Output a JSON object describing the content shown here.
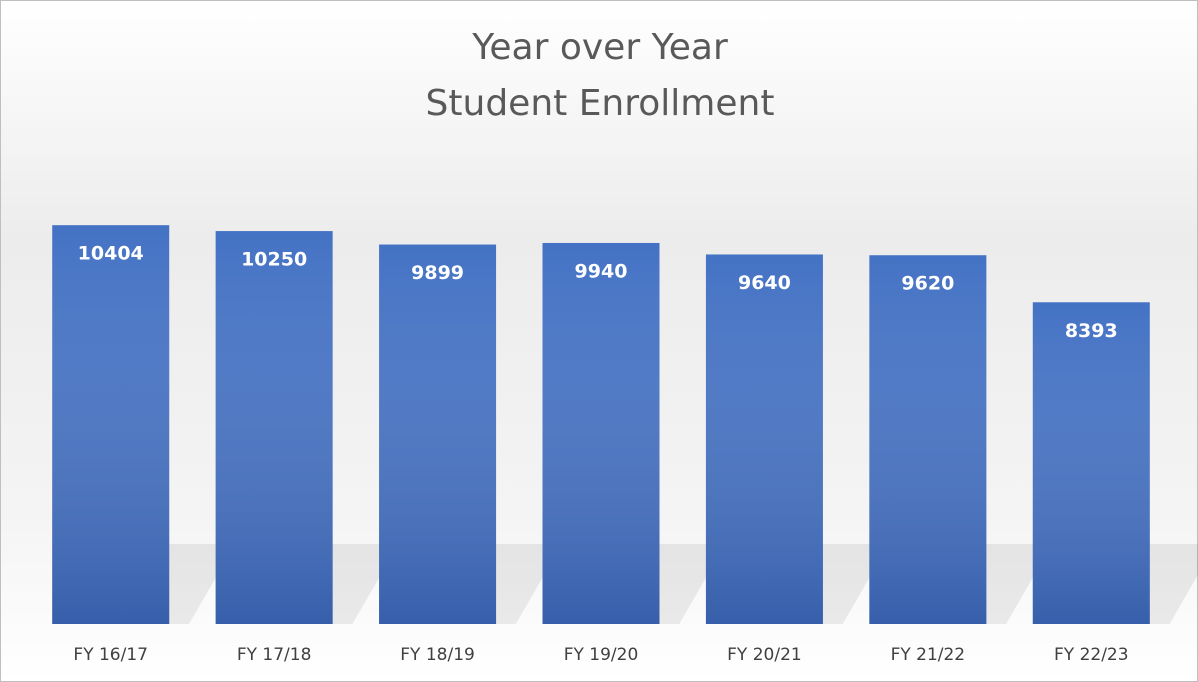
{
  "chart_data": {
    "type": "bar",
    "title": [
      "Year over Year",
      "Student Enrollment"
    ],
    "categories": [
      "FY 16/17",
      "FY 17/18",
      "FY 18/19",
      "FY 19/20",
      "FY 20/21",
      "FY 21/22",
      "FY 22/23"
    ],
    "values": [
      10404,
      10250,
      9899,
      9940,
      9640,
      9620,
      8393
    ],
    "color": "#4472c4",
    "ylim": [
      0,
      12000
    ],
    "grid": false
  }
}
